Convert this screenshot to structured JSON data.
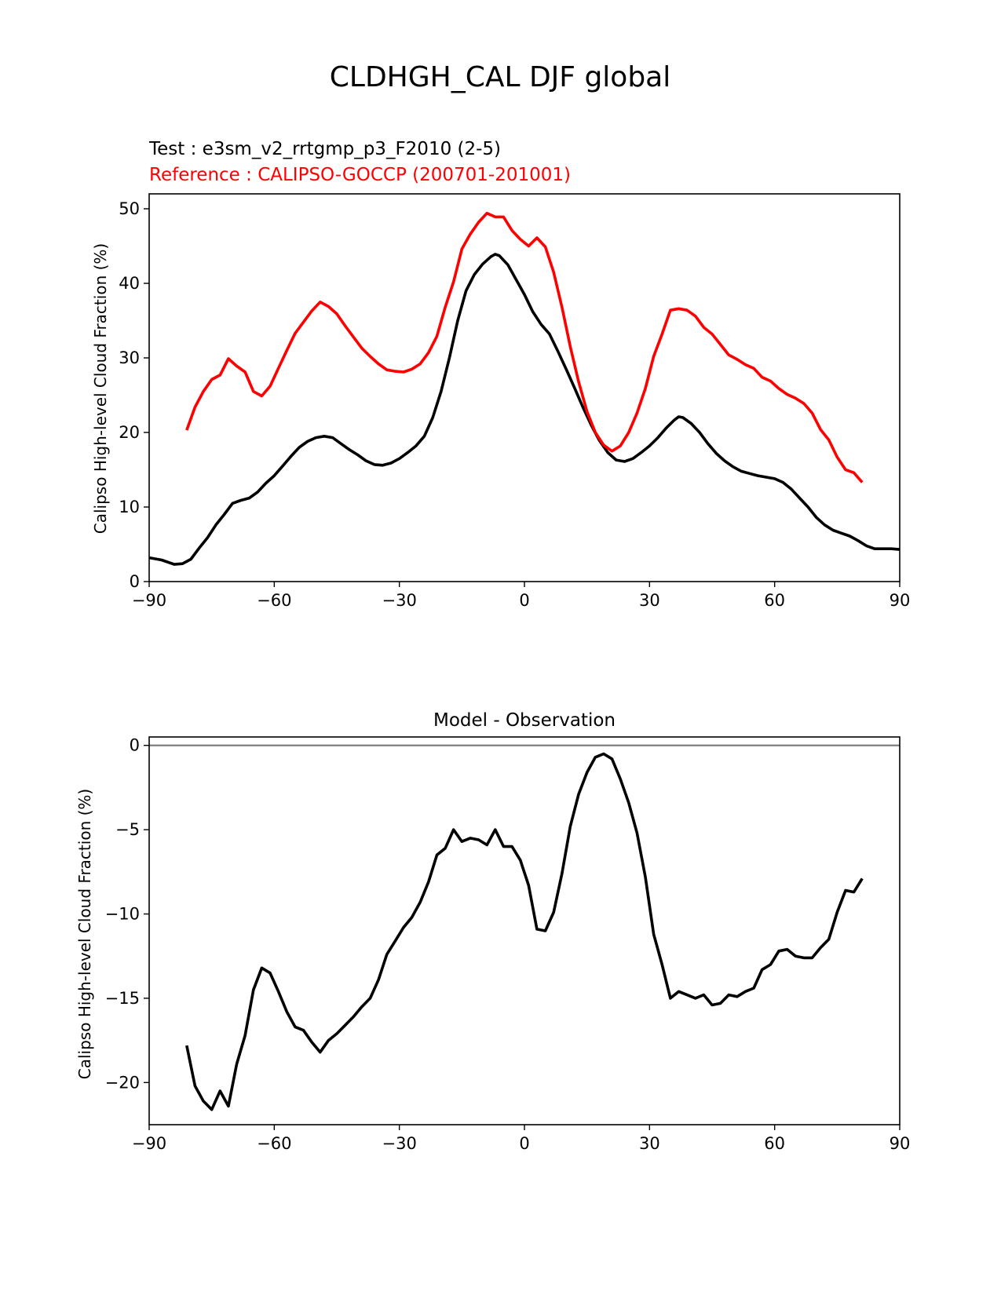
{
  "figure": {
    "title": "CLDHGH_CAL DJF global"
  },
  "chart_data": [
    {
      "type": "line",
      "test_label": "Test : e3sm_v2_rrtgmp_p3_F2010 (2-5)",
      "reference_label": "Reference : CALIPSO-GOCCP (200701-201001)",
      "xlabel": "",
      "ylabel": "Calipso High-level Cloud Fraction (%)",
      "xlim": [
        -90,
        90
      ],
      "ylim": [
        0,
        52
      ],
      "xticks": [
        -90,
        -60,
        -30,
        0,
        30,
        60,
        90
      ],
      "xtick_labels": [
        "−90",
        "−60",
        "−30",
        "0",
        "30",
        "60",
        "90"
      ],
      "yticks": [
        0,
        10,
        20,
        30,
        40,
        50
      ],
      "ytick_labels": [
        "0",
        "10",
        "20",
        "30",
        "40",
        "50"
      ],
      "grid": false,
      "series": [
        {
          "name": "Test",
          "color": "#000000",
          "points": [
            [
              -90,
              3.2
            ],
            [
              -87,
              2.9
            ],
            [
              -84,
              2.3
            ],
            [
              -82,
              2.4
            ],
            [
              -80,
              3
            ],
            [
              -78,
              4.5
            ],
            [
              -76,
              5.9
            ],
            [
              -74,
              7.6
            ],
            [
              -72,
              9
            ],
            [
              -70,
              10.5
            ],
            [
              -68,
              10.9
            ],
            [
              -66,
              11.2
            ],
            [
              -64,
              12
            ],
            [
              -62,
              13.2
            ],
            [
              -60,
              14.2
            ],
            [
              -58,
              15.5
            ],
            [
              -56,
              16.8
            ],
            [
              -54,
              18
            ],
            [
              -52,
              18.8
            ],
            [
              -50,
              19.3
            ],
            [
              -48,
              19.5
            ],
            [
              -46,
              19.3
            ],
            [
              -44,
              18.5
            ],
            [
              -42,
              17.7
            ],
            [
              -40,
              17
            ],
            [
              -38,
              16.2
            ],
            [
              -36,
              15.7
            ],
            [
              -34,
              15.6
            ],
            [
              -32,
              15.9
            ],
            [
              -30,
              16.5
            ],
            [
              -28,
              17.3
            ],
            [
              -26,
              18.2
            ],
            [
              -24,
              19.5
            ],
            [
              -22,
              22
            ],
            [
              -20,
              25.5
            ],
            [
              -18,
              30
            ],
            [
              -16,
              35
            ],
            [
              -14,
              39
            ],
            [
              -12,
              41.2
            ],
            [
              -10,
              42.6
            ],
            [
              -8,
              43.6
            ],
            [
              -7,
              43.9
            ],
            [
              -6,
              43.7
            ],
            [
              -4,
              42.5
            ],
            [
              -2,
              40.5
            ],
            [
              0,
              38.5
            ],
            [
              2,
              36.2
            ],
            [
              4,
              34.5
            ],
            [
              6,
              33.2
            ],
            [
              8,
              30.9
            ],
            [
              10,
              28.5
            ],
            [
              12,
              26
            ],
            [
              14,
              23.4
            ],
            [
              16,
              21
            ],
            [
              18,
              18.9
            ],
            [
              20,
              17.3
            ],
            [
              22,
              16.3
            ],
            [
              24,
              16.1
            ],
            [
              26,
              16.5
            ],
            [
              28,
              17.3
            ],
            [
              30,
              18.2
            ],
            [
              32,
              19.3
            ],
            [
              34,
              20.6
            ],
            [
              36,
              21.7
            ],
            [
              37,
              22.1
            ],
            [
              38,
              22
            ],
            [
              40,
              21.2
            ],
            [
              42,
              20
            ],
            [
              44,
              18.5
            ],
            [
              46,
              17.2
            ],
            [
              48,
              16.2
            ],
            [
              50,
              15.4
            ],
            [
              52,
              14.8
            ],
            [
              54,
              14.5
            ],
            [
              56,
              14.2
            ],
            [
              58,
              14
            ],
            [
              60,
              13.8
            ],
            [
              62,
              13.3
            ],
            [
              64,
              12.4
            ],
            [
              66,
              11.2
            ],
            [
              68,
              10
            ],
            [
              70,
              8.6
            ],
            [
              72,
              7.6
            ],
            [
              74,
              6.9
            ],
            [
              76,
              6.5
            ],
            [
              78,
              6.1
            ],
            [
              80,
              5.5
            ],
            [
              82,
              4.8
            ],
            [
              84,
              4.4
            ],
            [
              86,
              4.4
            ],
            [
              88,
              4.4
            ],
            [
              90,
              4.3
            ]
          ]
        },
        {
          "name": "Reference",
          "color": "#ff0000",
          "points": [
            [
              -81,
              20.3
            ],
            [
              -79,
              23.4
            ],
            [
              -77,
              25.5
            ],
            [
              -75,
              27.1
            ],
            [
              -73,
              27.7
            ],
            [
              -71,
              29.9
            ],
            [
              -69,
              28.9
            ],
            [
              -67,
              28.1
            ],
            [
              -65,
              25.5
            ],
            [
              -63,
              24.9
            ],
            [
              -61,
              26.2
            ],
            [
              -59,
              28.6
            ],
            [
              -57,
              31
            ],
            [
              -55,
              33.3
            ],
            [
              -53,
              34.8
            ],
            [
              -51,
              36.3
            ],
            [
              -49,
              37.5
            ],
            [
              -47,
              36.9
            ],
            [
              -45,
              35.9
            ],
            [
              -43,
              34.3
            ],
            [
              -41,
              32.8
            ],
            [
              -39,
              31.3
            ],
            [
              -37,
              30.2
            ],
            [
              -35,
              29.2
            ],
            [
              -33,
              28.4
            ],
            [
              -31,
              28.2
            ],
            [
              -29,
              28.1
            ],
            [
              -27,
              28.5
            ],
            [
              -25,
              29.2
            ],
            [
              -23,
              30.7
            ],
            [
              -21,
              32.9
            ],
            [
              -19,
              36.8
            ],
            [
              -17,
              40.2
            ],
            [
              -15,
              44.6
            ],
            [
              -13,
              46.6
            ],
            [
              -11,
              48.2
            ],
            [
              -9,
              49.4
            ],
            [
              -7,
              48.9
            ],
            [
              -5,
              48.9
            ],
            [
              -3,
              47.1
            ],
            [
              -1,
              45.9
            ],
            [
              1,
              45
            ],
            [
              3,
              46.1
            ],
            [
              5,
              44.9
            ],
            [
              7,
              41.5
            ],
            [
              9,
              36.8
            ],
            [
              11,
              31.5
            ],
            [
              13,
              26.8
            ],
            [
              15,
              22.8
            ],
            [
              17,
              20
            ],
            [
              19,
              18.3
            ],
            [
              21,
              17.5
            ],
            [
              23,
              18.2
            ],
            [
              25,
              20
            ],
            [
              27,
              22.6
            ],
            [
              29,
              25.9
            ],
            [
              31,
              30.2
            ],
            [
              33,
              33.2
            ],
            [
              35,
              36.4
            ],
            [
              37,
              36.6
            ],
            [
              39,
              36.4
            ],
            [
              41,
              35.6
            ],
            [
              43,
              34.1
            ],
            [
              45,
              33.2
            ],
            [
              47,
              31.8
            ],
            [
              49,
              30.4
            ],
            [
              51,
              29.8
            ],
            [
              53,
              29.1
            ],
            [
              55,
              28.6
            ],
            [
              57,
              27.4
            ],
            [
              59,
              26.9
            ],
            [
              61,
              25.9
            ],
            [
              63,
              25.1
            ],
            [
              65,
              24.6
            ],
            [
              67,
              23.9
            ],
            [
              69,
              22.6
            ],
            [
              71,
              20.4
            ],
            [
              73,
              19
            ],
            [
              75,
              16.7
            ],
            [
              77,
              15
            ],
            [
              79,
              14.6
            ],
            [
              81,
              13.3
            ]
          ]
        }
      ]
    },
    {
      "type": "line",
      "title": "Model - Observation",
      "xlabel": "",
      "ylabel": "Calipso High-level Cloud Fraction (%)",
      "xlim": [
        -90,
        90
      ],
      "ylim": [
        -22.5,
        0.5
      ],
      "xticks": [
        -90,
        -60,
        -30,
        0,
        30,
        60,
        90
      ],
      "xtick_labels": [
        "−90",
        "−60",
        "−30",
        "0",
        "30",
        "60",
        "90"
      ],
      "yticks": [
        0,
        -5,
        -10,
        -15,
        -20
      ],
      "ytick_labels": [
        "0",
        "−5",
        "−10",
        "−15",
        "−20"
      ],
      "zero_line_color": "#808080",
      "grid": false,
      "series": [
        {
          "name": "Model - Observation",
          "color": "#000000",
          "points": [
            [
              -81,
              -17.8
            ],
            [
              -79,
              -20.2
            ],
            [
              -77,
              -21.1
            ],
            [
              -75,
              -21.6
            ],
            [
              -73,
              -20.5
            ],
            [
              -71,
              -21.4
            ],
            [
              -69,
              -18.9
            ],
            [
              -67,
              -17.2
            ],
            [
              -65,
              -14.5
            ],
            [
              -63,
              -13.2
            ],
            [
              -61,
              -13.5
            ],
            [
              -59,
              -14.6
            ],
            [
              -57,
              -15.8
            ],
            [
              -55,
              -16.7
            ],
            [
              -53,
              -16.9
            ],
            [
              -51,
              -17.6
            ],
            [
              -49,
              -18.2
            ],
            [
              -47,
              -17.5
            ],
            [
              -45,
              -17.1
            ],
            [
              -43,
              -16.6
            ],
            [
              -41,
              -16.1
            ],
            [
              -39,
              -15.5
            ],
            [
              -37,
              -15
            ],
            [
              -35,
              -13.9
            ],
            [
              -33,
              -12.4
            ],
            [
              -31,
              -11.6
            ],
            [
              -29,
              -10.8
            ],
            [
              -27,
              -10.2
            ],
            [
              -25,
              -9.3
            ],
            [
              -23,
              -8.1
            ],
            [
              -21,
              -6.5
            ],
            [
              -19,
              -6.1
            ],
            [
              -17,
              -5
            ],
            [
              -15,
              -5.7
            ],
            [
              -13,
              -5.5
            ],
            [
              -11,
              -5.6
            ],
            [
              -9,
              -5.9
            ],
            [
              -7,
              -5
            ],
            [
              -5,
              -6
            ],
            [
              -3,
              -6
            ],
            [
              -1,
              -6.8
            ],
            [
              1,
              -8.3
            ],
            [
              3,
              -10.9
            ],
            [
              5,
              -11
            ],
            [
              7,
              -9.9
            ],
            [
              9,
              -7.6
            ],
            [
              11,
              -4.8
            ],
            [
              13,
              -2.9
            ],
            [
              15,
              -1.6
            ],
            [
              17,
              -0.7
            ],
            [
              19,
              -0.5
            ],
            [
              21,
              -0.8
            ],
            [
              23,
              -2
            ],
            [
              25,
              -3.4
            ],
            [
              27,
              -5.2
            ],
            [
              29,
              -7.8
            ],
            [
              31,
              -11.2
            ],
            [
              33,
              -13
            ],
            [
              35,
              -15
            ],
            [
              37,
              -14.6
            ],
            [
              39,
              -14.8
            ],
            [
              41,
              -15
            ],
            [
              43,
              -14.8
            ],
            [
              45,
              -15.4
            ],
            [
              47,
              -15.3
            ],
            [
              49,
              -14.8
            ],
            [
              51,
              -14.9
            ],
            [
              53,
              -14.6
            ],
            [
              55,
              -14.4
            ],
            [
              57,
              -13.3
            ],
            [
              59,
              -13
            ],
            [
              61,
              -12.2
            ],
            [
              63,
              -12.1
            ],
            [
              65,
              -12.5
            ],
            [
              67,
              -12.6
            ],
            [
              69,
              -12.6
            ],
            [
              71,
              -12
            ],
            [
              73,
              -11.5
            ],
            [
              75,
              -9.9
            ],
            [
              77,
              -8.6
            ],
            [
              79,
              -8.7
            ],
            [
              81,
              -7.9
            ]
          ]
        }
      ]
    }
  ]
}
